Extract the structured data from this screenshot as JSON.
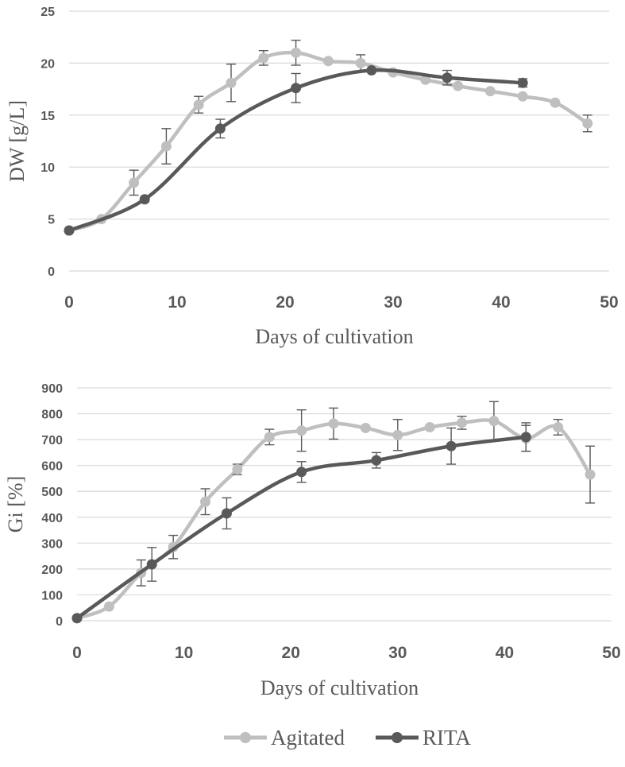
{
  "chart_data": [
    {
      "type": "line",
      "xlabel": "Days of cultivation",
      "ylabel": "DW [g/L]",
      "xlim": [
        0,
        50
      ],
      "ylim": [
        0,
        25
      ],
      "xticks": [
        0,
        10,
        20,
        30,
        40,
        50
      ],
      "yticks": [
        0,
        5,
        10,
        15,
        20,
        25
      ],
      "grid": "horizontal",
      "series": [
        {
          "name": "Agitated",
          "color": "#bfbfbf",
          "x": [
            0,
            3,
            6,
            9,
            12,
            15,
            18,
            21,
            24,
            27,
            30,
            33,
            36,
            39,
            42,
            45,
            48
          ],
          "y": [
            3.9,
            5.0,
            8.5,
            12.0,
            16.0,
            18.1,
            20.5,
            21.0,
            20.2,
            20.0,
            19.1,
            18.4,
            17.8,
            17.3,
            16.8,
            16.2,
            14.2
          ],
          "err": [
            0,
            0,
            1.2,
            1.7,
            0.8,
            1.8,
            0.7,
            1.2,
            0,
            0.8,
            0,
            0,
            0,
            0,
            0,
            0,
            0.8
          ]
        },
        {
          "name": "RITA",
          "color": "#595959",
          "x": [
            0,
            7,
            14,
            21,
            28,
            35,
            42
          ],
          "y": [
            3.9,
            6.9,
            13.7,
            17.6,
            19.3,
            18.6,
            18.1
          ],
          "err": [
            0,
            0,
            0.9,
            1.4,
            0,
            0.7,
            0.4
          ]
        }
      ]
    },
    {
      "type": "line",
      "xlabel": "Days of cultivation",
      "ylabel": "Gi [%]",
      "xlim": [
        0,
        50
      ],
      "ylim": [
        0,
        900
      ],
      "xticks": [
        0,
        10,
        20,
        30,
        40,
        50
      ],
      "yticks": [
        0,
        100,
        200,
        300,
        400,
        500,
        600,
        700,
        800,
        900
      ],
      "grid": "horizontal",
      "series": [
        {
          "name": "Agitated",
          "color": "#bfbfbf",
          "x": [
            0,
            3,
            6,
            9,
            12,
            15,
            18,
            21,
            24,
            27,
            30,
            33,
            36,
            39,
            42,
            45,
            48
          ],
          "y": [
            10,
            55,
            185,
            285,
            460,
            585,
            710,
            735,
            762,
            745,
            718,
            748,
            765,
            772,
            705,
            748,
            565
          ],
          "err": [
            0,
            0,
            50,
            45,
            50,
            20,
            30,
            80,
            60,
            0,
            60,
            0,
            25,
            75,
            50,
            30,
            110
          ]
        },
        {
          "name": "RITA",
          "color": "#595959",
          "x": [
            0,
            7,
            14,
            21,
            28,
            35,
            42
          ],
          "y": [
            10,
            218,
            415,
            575,
            620,
            675,
            710
          ],
          "err": [
            0,
            65,
            60,
            40,
            30,
            70,
            55
          ]
        }
      ]
    }
  ],
  "legend": {
    "items": [
      {
        "label": "Agitated",
        "color": "#bfbfbf"
      },
      {
        "label": "RITA",
        "color": "#595959"
      }
    ]
  }
}
